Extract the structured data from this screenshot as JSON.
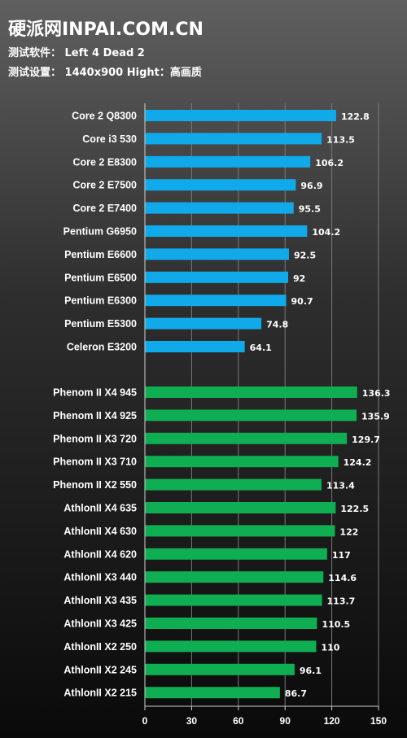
{
  "header": {
    "title": "硬派网INPAI.COM.CN",
    "software_line": "测试软件： Left 4 Dead 2",
    "settings_line": "测试设置： 1440x900 Hight：高画质"
  },
  "colors": {
    "intel_bar": "#10aaea",
    "amd_bar": "#0fae52",
    "grid": "#7a7a7a",
    "axis": "#d0d0d0"
  },
  "chart_data": {
    "type": "bar",
    "orientation": "horizontal",
    "title": "",
    "xlabel": "",
    "ylabel": "",
    "xlim": [
      0,
      150
    ],
    "xticks": [
      0,
      30,
      60,
      90,
      120,
      150
    ],
    "grid": true,
    "groups": [
      {
        "color": "#10aaea",
        "categories": [
          "Core 2 Q8300",
          "Core i3 530",
          "Core 2 E8300",
          "Core 2 E7500",
          "Core 2 E7400",
          "Pentium G6950",
          "Pentium E6600",
          "Pentium E6500",
          "Pentium E6300",
          "Pentium E5300",
          "Celeron E3200"
        ],
        "values": [
          122.8,
          113.5,
          106.2,
          96.9,
          95.5,
          104.2,
          92.5,
          92,
          90.7,
          74.8,
          64.1
        ],
        "value_labels": [
          "122.8",
          "113.5",
          "106.2",
          "96.9",
          "95.5",
          "104.2",
          "92.5",
          "92",
          "90.7",
          "74.8",
          "64.1"
        ]
      },
      {
        "color": "#0fae52",
        "categories": [
          "Phenom II X4 945",
          "Phenom II X4 925",
          "Phenom II X3 720",
          "Phenom II X3 710",
          "Phenom II X2 550",
          "AthlonII X4 635",
          "AthlonII X4 630",
          "AthlonII X4 620",
          "AthlonII X3 440",
          "AthlonII X3 435",
          "AthlonII X3 425",
          "AthlonII X2 250",
          "AthlonII X2 245",
          "AthlonII X2 215"
        ],
        "values": [
          136.3,
          135.9,
          129.7,
          124.2,
          113.4,
          122.5,
          122,
          117,
          114.6,
          113.7,
          110.5,
          110,
          96.1,
          86.7
        ],
        "value_labels": [
          "136.3",
          "135.9",
          "129.7",
          "124.2",
          "113.4",
          "122.5",
          "122",
          "117",
          "114.6",
          "113.7",
          "110.5",
          "110",
          "96.1",
          "86.7"
        ]
      }
    ]
  }
}
